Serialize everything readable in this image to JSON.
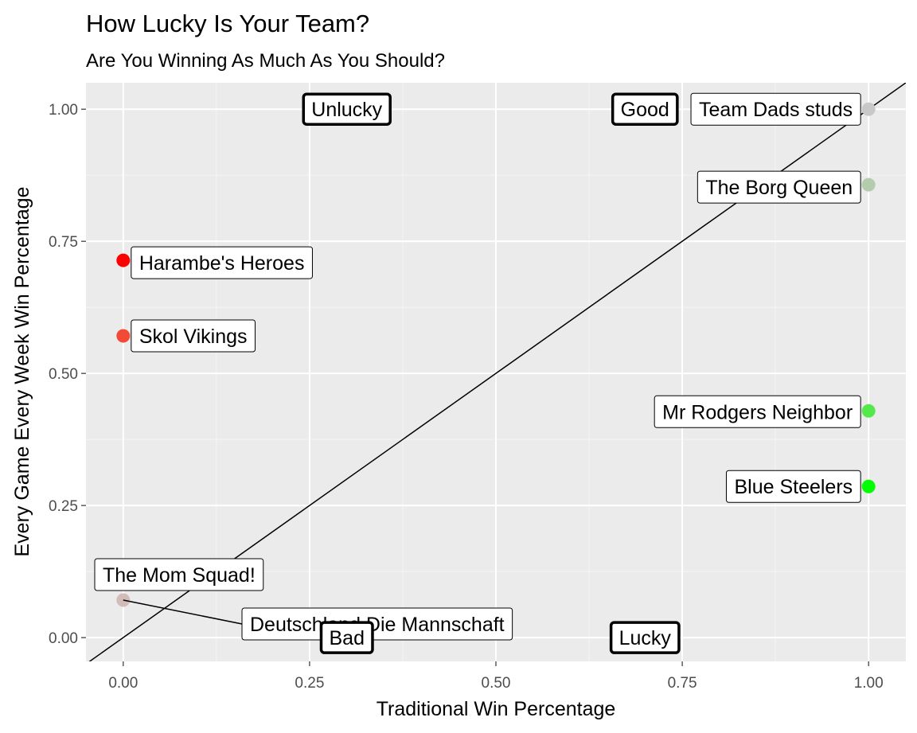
{
  "chart_data": {
    "type": "scatter",
    "title": "How Lucky Is Your Team?",
    "subtitle": "Are You Winning As Much As You Should?",
    "xlabel": "Traditional Win Percentage",
    "ylabel": "Every Game Every Week Win Percentage",
    "xlim": [
      -0.05,
      1.05
    ],
    "ylim": [
      -0.045,
      1.05
    ],
    "xticks": [
      0.0,
      0.25,
      0.5,
      0.75,
      1.0
    ],
    "yticks": [
      0.0,
      0.25,
      0.5,
      0.75,
      1.0
    ],
    "xtick_labels": [
      "0.00",
      "0.25",
      "0.50",
      "0.75",
      "1.00"
    ],
    "ytick_labels": [
      "0.00",
      "0.25",
      "0.50",
      "0.75",
      "1.00"
    ],
    "grid": true,
    "reference_line": {
      "slope": 1,
      "intercept": 0
    },
    "points": [
      {
        "team": "Team Dads studs",
        "x": 1.0,
        "y": 1.0,
        "color": "#c8c8c8"
      },
      {
        "team": "The Borg Queen",
        "x": 1.0,
        "y": 0.857,
        "color": "#b4ccae"
      },
      {
        "team": "Harambe's Heroes",
        "x": 0.0,
        "y": 0.714,
        "color": "#ff0000"
      },
      {
        "team": "Skol Vikings",
        "x": 0.0,
        "y": 0.571,
        "color": "#f24a35"
      },
      {
        "team": "Mr Rodgers Neighbor",
        "x": 1.0,
        "y": 0.429,
        "color": "#55e84d"
      },
      {
        "team": "Blue Steelers",
        "x": 1.0,
        "y": 0.286,
        "color": "#00ff00"
      },
      {
        "team": "The Mom  Squad!",
        "x": 0.0,
        "y": 0.071,
        "color": "#d3bcb7"
      },
      {
        "team": "Deutschland Die Mannschaft",
        "x": 0.0,
        "y": 0.071,
        "color": "#d3bcb7"
      }
    ],
    "quadrant_labels": [
      {
        "text": "Unlucky",
        "x": 0.3,
        "y": 1.0
      },
      {
        "text": "Good",
        "x": 0.7,
        "y": 1.0
      },
      {
        "text": "Bad",
        "x": 0.3,
        "y": 0.0
      },
      {
        "text": "Lucky",
        "x": 0.7,
        "y": 0.0
      }
    ]
  }
}
